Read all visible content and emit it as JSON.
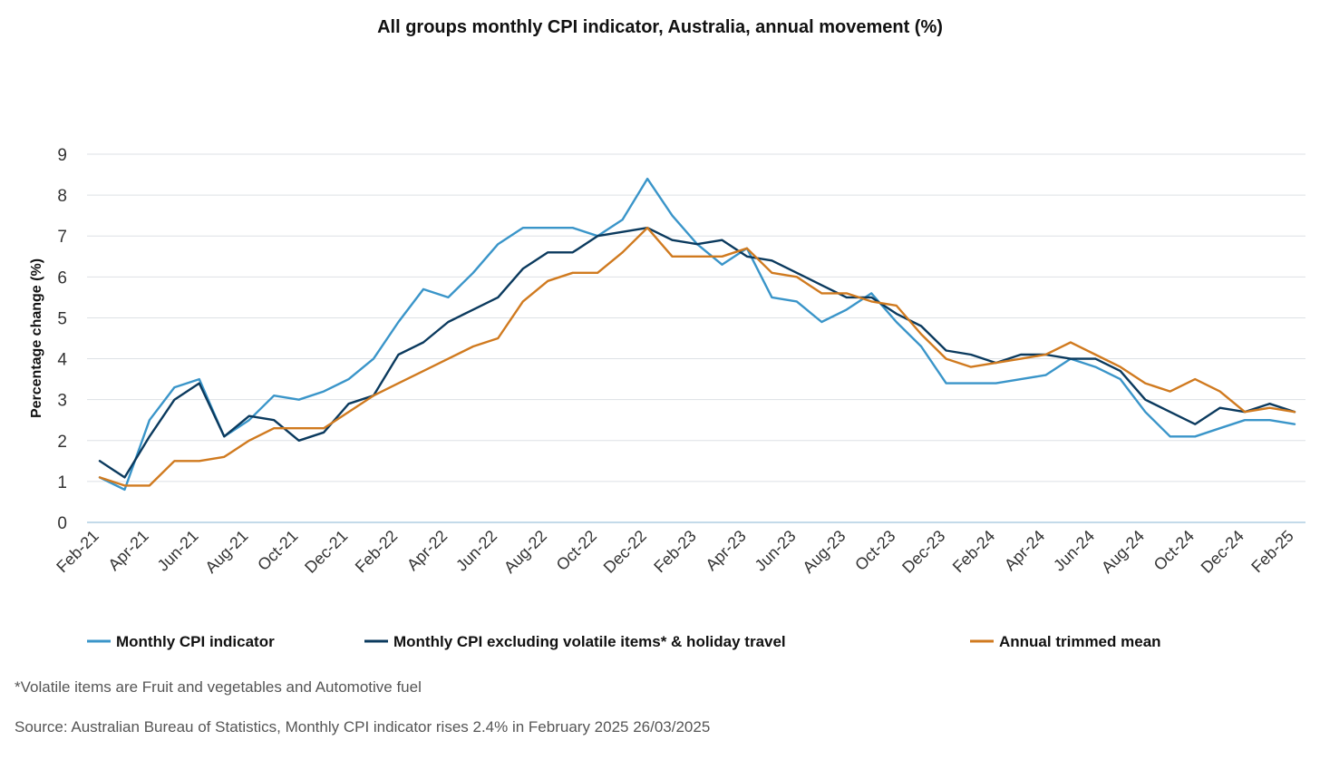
{
  "chart_data": {
    "type": "line",
    "title": "All groups monthly CPI indicator, Australia, annual movement (%)",
    "xlabel": "",
    "ylabel": "Percentage change (%)",
    "ylim": [
      0,
      9
    ],
    "yticks": [
      0,
      1,
      2,
      3,
      4,
      5,
      6,
      7,
      8,
      9
    ],
    "grid": true,
    "legend_position": "bottom",
    "x": [
      "Feb-21",
      "Mar-21",
      "Apr-21",
      "May-21",
      "Jun-21",
      "Jul-21",
      "Aug-21",
      "Sep-21",
      "Oct-21",
      "Nov-21",
      "Dec-21",
      "Jan-22",
      "Feb-22",
      "Mar-22",
      "Apr-22",
      "May-22",
      "Jun-22",
      "Jul-22",
      "Aug-22",
      "Sep-22",
      "Oct-22",
      "Nov-22",
      "Dec-22",
      "Jan-23",
      "Feb-23",
      "Mar-23",
      "Apr-23",
      "May-23",
      "Jun-23",
      "Jul-23",
      "Aug-23",
      "Sep-23",
      "Oct-23",
      "Nov-23",
      "Dec-23",
      "Jan-24",
      "Feb-24",
      "Mar-24",
      "Apr-24",
      "May-24",
      "Jun-24",
      "Jul-24",
      "Aug-24",
      "Sep-24",
      "Oct-24",
      "Nov-24",
      "Dec-24",
      "Jan-25",
      "Feb-25"
    ],
    "xtick_labels": [
      "Feb-21",
      "Apr-21",
      "Jun-21",
      "Aug-21",
      "Oct-21",
      "Dec-21",
      "Feb-22",
      "Apr-22",
      "Jun-22",
      "Aug-22",
      "Oct-22",
      "Dec-22",
      "Feb-23",
      "Apr-23",
      "Jun-23",
      "Aug-23",
      "Oct-23",
      "Dec-23",
      "Feb-24",
      "Apr-24",
      "Jun-24",
      "Aug-24",
      "Oct-24",
      "Dec-24",
      "Feb-25"
    ],
    "series": [
      {
        "name": "Monthly CPI indicator",
        "color": "#3a95c9",
        "values": [
          1.1,
          0.8,
          2.5,
          3.3,
          3.5,
          2.1,
          2.5,
          3.1,
          3.0,
          3.2,
          3.5,
          4.0,
          4.9,
          5.7,
          5.5,
          6.1,
          6.8,
          7.2,
          7.2,
          7.2,
          7.0,
          7.4,
          8.4,
          7.5,
          6.8,
          6.3,
          6.7,
          5.5,
          5.4,
          4.9,
          5.2,
          5.6,
          4.9,
          4.3,
          3.4,
          3.4,
          3.4,
          3.5,
          3.6,
          4.0,
          3.8,
          3.5,
          2.7,
          2.1,
          2.1,
          2.3,
          2.5,
          2.5,
          2.4
        ]
      },
      {
        "name": "Monthly CPI excluding volatile items* & holiday travel",
        "color": "#0b3a5e",
        "values": [
          1.5,
          1.1,
          2.1,
          3.0,
          3.4,
          2.1,
          2.6,
          2.5,
          2.0,
          2.2,
          2.9,
          3.1,
          4.1,
          4.4,
          4.9,
          5.2,
          5.5,
          6.2,
          6.6,
          6.6,
          7.0,
          7.1,
          7.2,
          6.9,
          6.8,
          6.9,
          6.5,
          6.4,
          6.1,
          5.8,
          5.5,
          5.5,
          5.1,
          4.8,
          4.2,
          4.1,
          3.9,
          4.1,
          4.1,
          4.0,
          4.0,
          3.7,
          3.0,
          2.7,
          2.4,
          2.8,
          2.7,
          2.9,
          2.7
        ]
      },
      {
        "name": "Annual trimmed mean",
        "color": "#d07a1f",
        "values": [
          1.1,
          0.9,
          0.9,
          1.5,
          1.5,
          1.6,
          2.0,
          2.3,
          2.3,
          2.3,
          2.7,
          3.1,
          3.4,
          3.7,
          4.0,
          4.3,
          4.5,
          5.4,
          5.9,
          6.1,
          6.1,
          6.6,
          7.2,
          6.5,
          6.5,
          6.5,
          6.7,
          6.1,
          6.0,
          5.6,
          5.6,
          5.4,
          5.3,
          4.6,
          4.0,
          3.8,
          3.9,
          4.0,
          4.1,
          4.4,
          4.1,
          3.8,
          3.4,
          3.2,
          3.5,
          3.2,
          2.7,
          2.8,
          2.7
        ]
      }
    ]
  },
  "notes": {
    "footnote": "*Volatile items are Fruit and vegetables and Automotive fuel",
    "source": "Source: Australian Bureau of Statistics, Monthly CPI indicator rises 2.4% in February 2025 26/03/2025"
  }
}
